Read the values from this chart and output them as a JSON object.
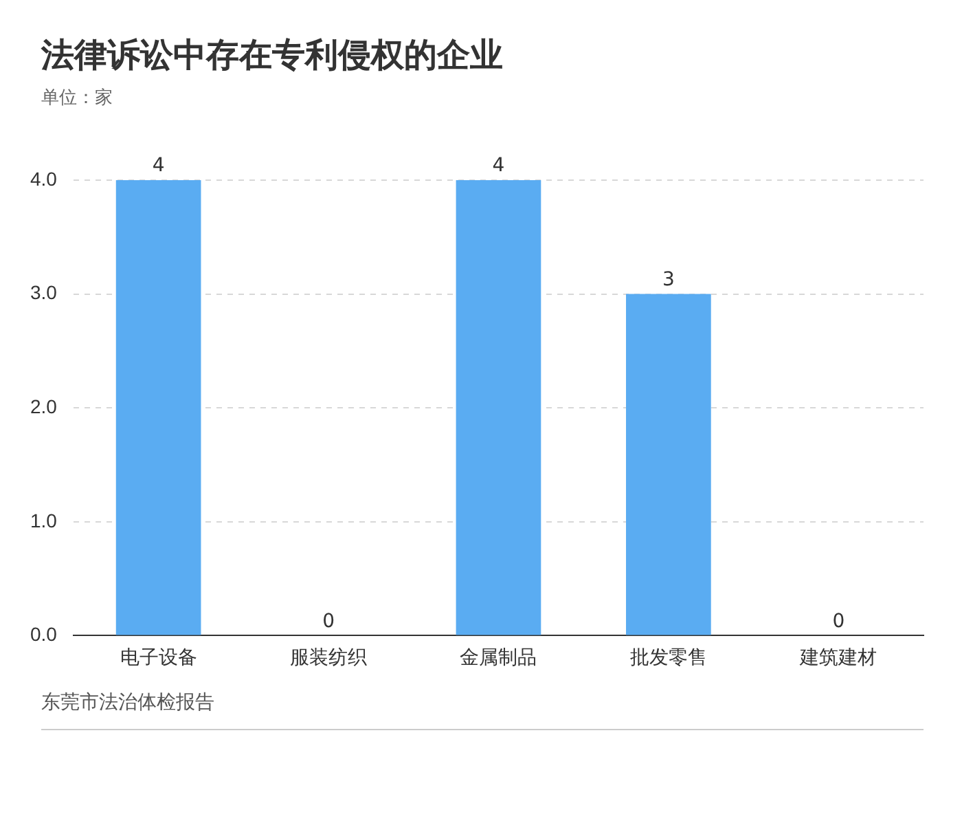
{
  "chart_data": {
    "type": "bar",
    "title": "法律诉讼中存在专利侵权的企业",
    "subtitle": "单位：家",
    "categories": [
      "电子设备",
      "服装纺织",
      "金属制品",
      "批发零售",
      "建筑建材"
    ],
    "values": [
      4,
      0,
      4,
      3,
      0
    ],
    "color": "#5aacf2",
    "ylim": [
      0,
      4
    ],
    "yticks": [
      {
        "value": 0,
        "label": "0.0"
      },
      {
        "value": 1,
        "label": "1.0"
      },
      {
        "value": 2,
        "label": "2.0"
      },
      {
        "value": 3,
        "label": "3.0"
      },
      {
        "value": 4,
        "label": "4.0"
      }
    ],
    "grid": "y",
    "data_labels": true,
    "annotations": [
      "东莞市法治体检报告"
    ]
  }
}
